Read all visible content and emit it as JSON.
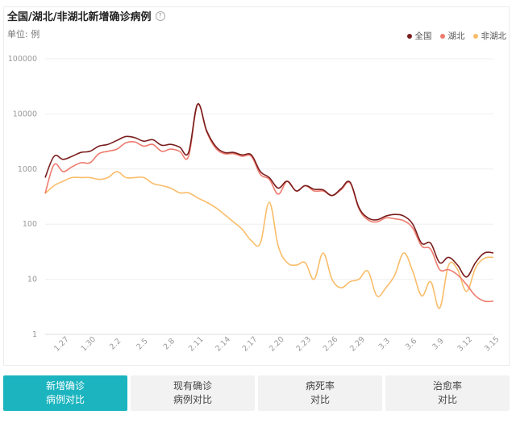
{
  "header": {
    "title": "全国/湖北/非湖北新增确诊病例",
    "help_glyph": "?",
    "unit": "单位: 例"
  },
  "colors": {
    "national": "#7a1d1d",
    "hubei": "#ee7b6e",
    "non_hubei": "#f9bd6a",
    "grid": "#eeeeee",
    "axis_text": "#999999",
    "active_tab": "#1bb4bf"
  },
  "chart_data": {
    "type": "line",
    "yscale": "log",
    "ylim": [
      1,
      100000
    ],
    "yticks": [
      1,
      10,
      100,
      1000,
      10000,
      100000
    ],
    "ytick_labels": [
      "1",
      "10",
      "100",
      "1000",
      "10000",
      "100000"
    ],
    "x": [
      "1.25",
      "1.26",
      "1.27",
      "1.28",
      "1.29",
      "1.30",
      "1.31",
      "2.1",
      "2.2",
      "2.3",
      "2.4",
      "2.5",
      "2.6",
      "2.7",
      "2.8",
      "2.9",
      "2.10",
      "2.11",
      "2.12",
      "2.13",
      "2.14",
      "2.15",
      "2.16",
      "2.17",
      "2.18",
      "2.19",
      "2.20",
      "2.21",
      "2.22",
      "2.23",
      "2.24",
      "2.25",
      "2.26",
      "2.27",
      "2.28",
      "2.29",
      "3.1",
      "3.2",
      "3.3",
      "3.4",
      "3.5",
      "3.6",
      "3.7",
      "3.8",
      "3.9",
      "3.10",
      "3.11",
      "3.12",
      "3.13",
      "3.14",
      "3.15"
    ],
    "xtick_labels": [
      "1.27",
      "1.30",
      "2.2",
      "2.5",
      "2.8",
      "2.11",
      "2.14",
      "2.17",
      "2.20",
      "2.23",
      "2.26",
      "2.29",
      "3.3",
      "3.6",
      "3.9",
      "3.12",
      "3.15"
    ],
    "series": [
      {
        "name": "全国",
        "key": "national",
        "values": [
          700,
          1700,
          1500,
          1700,
          2000,
          2100,
          2600,
          2800,
          3300,
          3900,
          3700,
          3200,
          3400,
          2700,
          2800,
          2500,
          2000,
          15000,
          5000,
          2600,
          2000,
          2000,
          1800,
          1800,
          900,
          700,
          450,
          600,
          400,
          500,
          430,
          420,
          330,
          440,
          580,
          200,
          130,
          120,
          140,
          150,
          140,
          100,
          45,
          45,
          20,
          25,
          18,
          11,
          20,
          30,
          30
        ]
      },
      {
        "name": "湖北",
        "key": "hubei",
        "values": [
          360,
          1200,
          900,
          1100,
          1300,
          1300,
          1900,
          2100,
          2300,
          3000,
          3100,
          2600,
          2800,
          2100,
          2300,
          2100,
          1700,
          14800,
          4800,
          2400,
          1900,
          1900,
          1700,
          1700,
          800,
          650,
          350,
          600,
          400,
          500,
          400,
          400,
          330,
          420,
          560,
          190,
          120,
          110,
          130,
          125,
          115,
          85,
          40,
          35,
          15,
          15,
          12,
          8,
          5,
          4,
          4
        ]
      },
      {
        "name": "非湖北",
        "key": "non_hubei",
        "values": [
          360,
          500,
          600,
          700,
          700,
          700,
          650,
          700,
          900,
          700,
          700,
          700,
          550,
          500,
          450,
          370,
          370,
          300,
          250,
          200,
          150,
          110,
          80,
          50,
          45,
          250,
          40,
          20,
          18,
          20,
          10,
          30,
          10,
          7,
          9,
          10,
          14,
          5,
          7,
          12,
          30,
          14,
          5,
          9,
          3,
          18,
          15,
          6,
          16,
          24,
          25
        ]
      }
    ]
  },
  "tabs": [
    {
      "line1": "新增确诊",
      "line2": "病例对比"
    },
    {
      "line1": "现有确诊",
      "line2": "病例对比"
    },
    {
      "line1": "病死率",
      "line2": "对比"
    },
    {
      "line1": "治愈率",
      "line2": "对比"
    }
  ]
}
